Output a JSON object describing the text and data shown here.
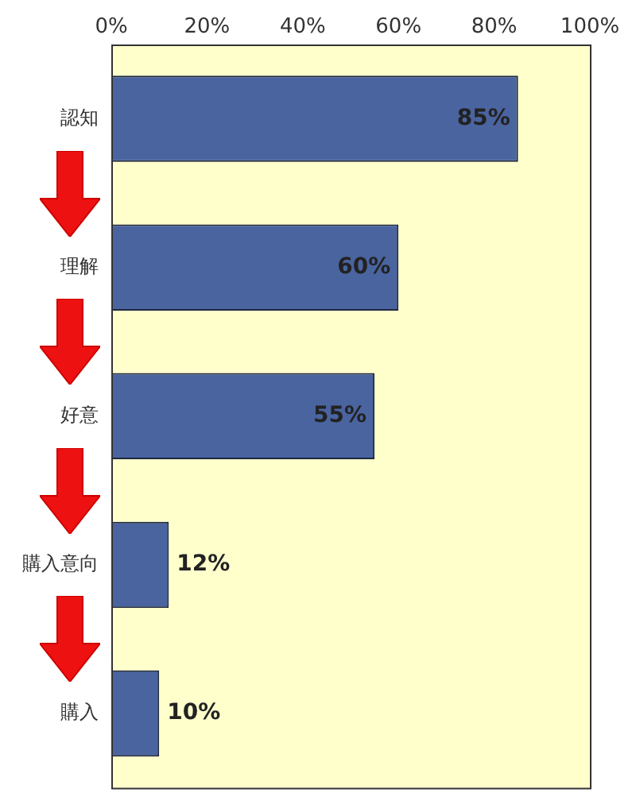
{
  "chart_data": {
    "type": "bar",
    "orientation": "horizontal",
    "categories": [
      "認知",
      "理解",
      "好意",
      "購入意向",
      "購入"
    ],
    "values": [
      85,
      60,
      55,
      12,
      10
    ],
    "color": "#4a64a0",
    "value_labels": [
      "85%",
      "60%",
      "55%",
      "12%",
      "10%"
    ],
    "xlim": [
      0,
      100
    ],
    "xticks": [
      {
        "value": 0,
        "label": "0%"
      },
      {
        "value": 20,
        "label": "20%"
      },
      {
        "value": 40,
        "label": "40%"
      },
      {
        "value": 60,
        "label": "60%"
      },
      {
        "value": 80,
        "label": "80%"
      },
      {
        "value": 100,
        "label": "100%"
      }
    ],
    "grid": false,
    "legend": false
  }
}
